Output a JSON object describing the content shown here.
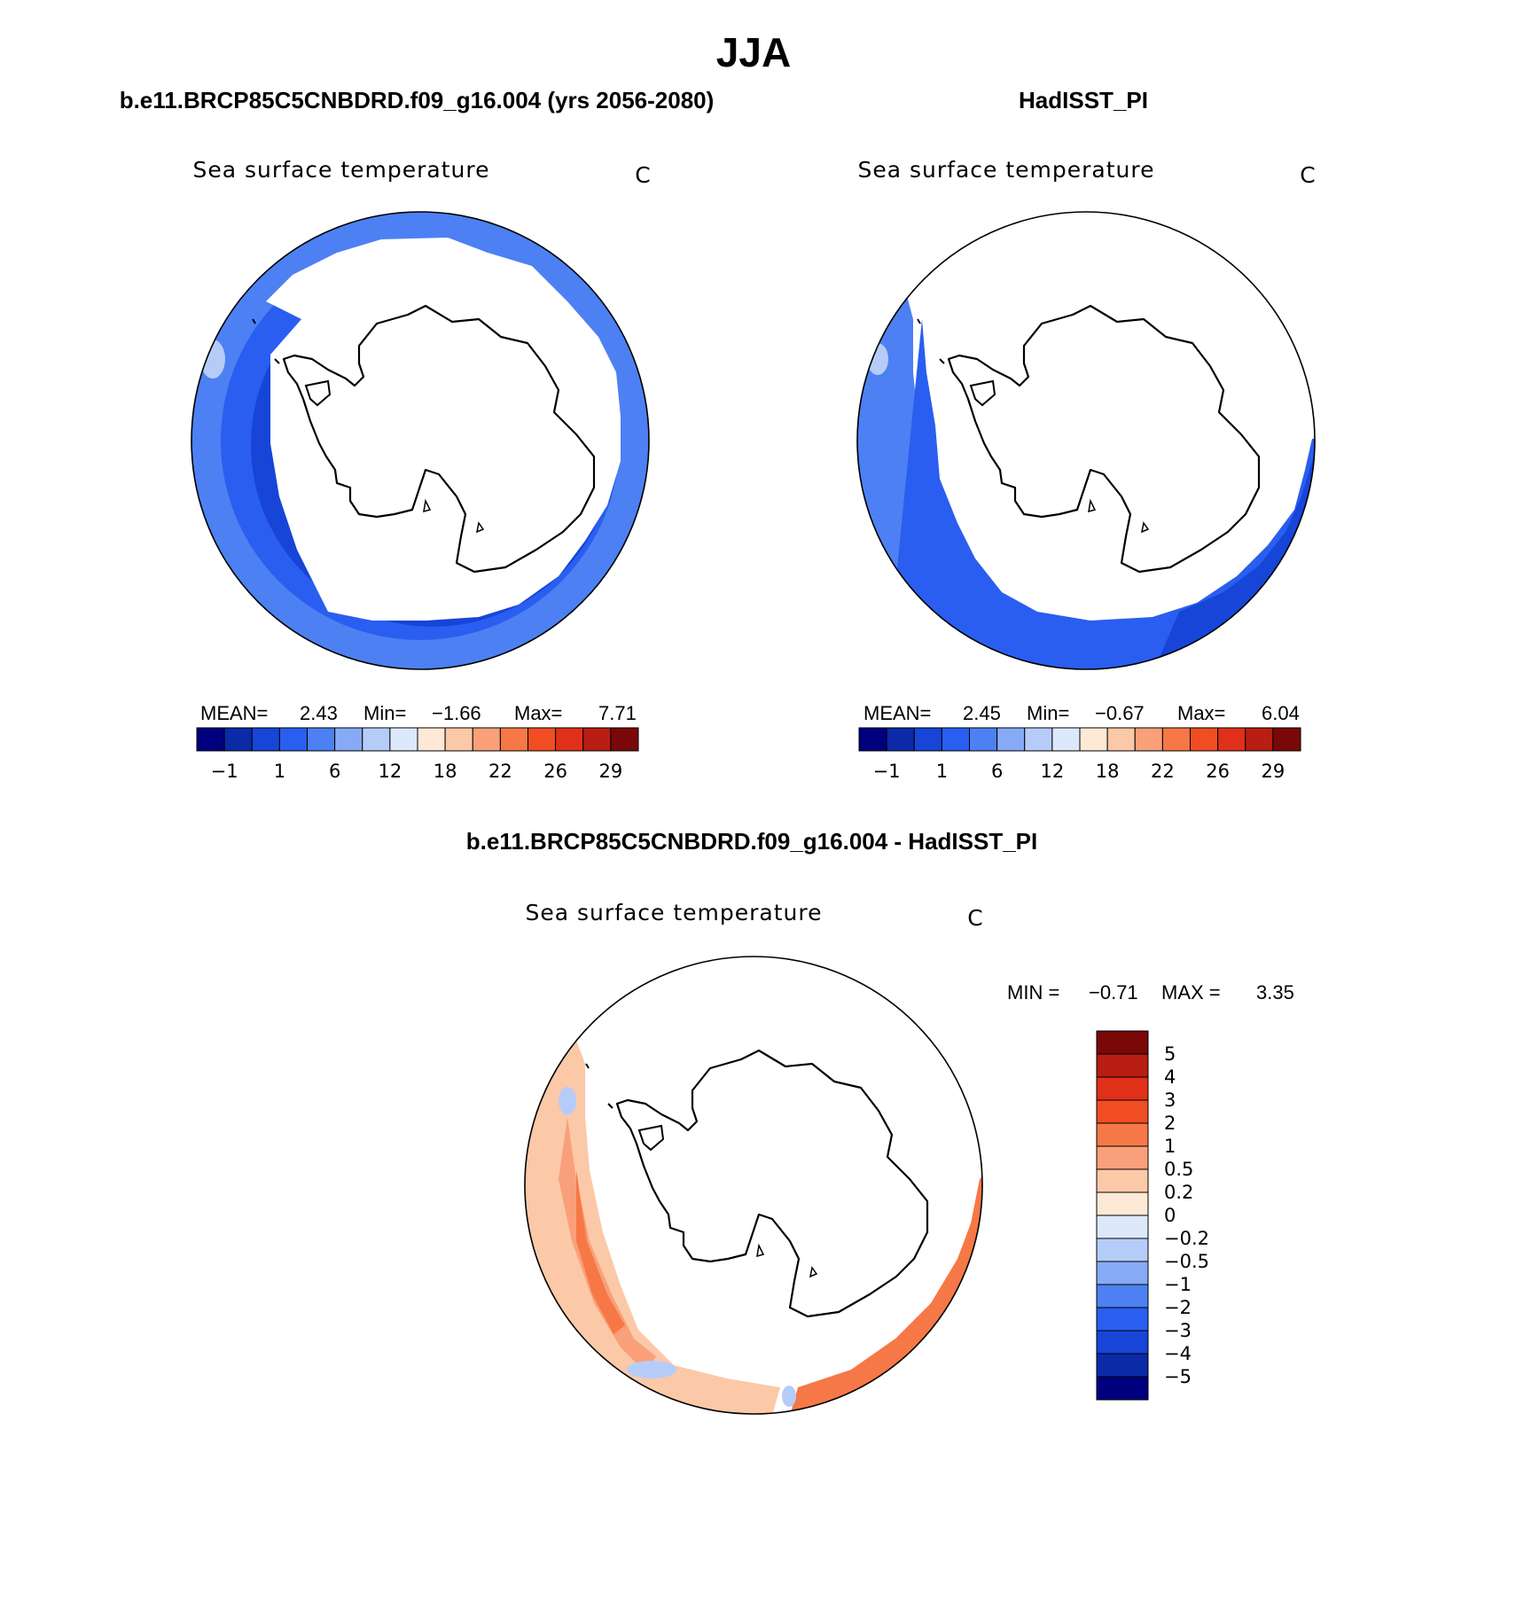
{
  "title": "JJA",
  "panels": [
    {
      "id": "model",
      "heading": "b.e11.BRCP85C5CNBDRD.f09_g16.004 (yrs 2056-2080)",
      "variable": "Sea surface temperature",
      "units": "C",
      "stats": {
        "mean_label": "MEAN=",
        "mean": "2.43",
        "min_label": "Min=",
        "min": "−1.66",
        "max_label": "Max=",
        "max": "7.71"
      },
      "colorbar_ticks": [
        "−1",
        "1",
        "6",
        "12",
        "18",
        "22",
        "26",
        "29"
      ],
      "colorbar_colors": [
        "#00007e",
        "#0a2aa8",
        "#1645d8",
        "#2a5ef0",
        "#4d80f2",
        "#86aaf5",
        "#b6ccf8",
        "#dde9fb",
        "#fde9d6",
        "#fbc9a7",
        "#f9a07a",
        "#f67846",
        "#f04e22",
        "#e0301a",
        "#b81e12",
        "#7a0808"
      ]
    },
    {
      "id": "obs",
      "heading": "HadISST_PI",
      "variable": "Sea surface temperature",
      "units": "C",
      "stats": {
        "mean_label": "MEAN=",
        "mean": "2.45",
        "min_label": "Min=",
        "min": "−0.67",
        "max_label": "Max=",
        "max": "6.04"
      },
      "colorbar_ticks": [
        "−1",
        "1",
        "6",
        "12",
        "18",
        "22",
        "26",
        "29"
      ],
      "colorbar_colors": [
        "#00007e",
        "#0a2aa8",
        "#1645d8",
        "#2a5ef0",
        "#4d80f2",
        "#86aaf5",
        "#b6ccf8",
        "#dde9fb",
        "#fde9d6",
        "#fbc9a7",
        "#f9a07a",
        "#f67846",
        "#f04e22",
        "#e0301a",
        "#b81e12",
        "#7a0808"
      ]
    }
  ],
  "diff": {
    "heading": "b.e11.BRCP85C5CNBDRD.f09_g16.004 - HadISST_PI",
    "variable": "Sea surface temperature",
    "units": "C",
    "stats": {
      "min_label": "MIN =",
      "min": "−0.71",
      "max_label": "MAX =",
      "max": "3.35"
    },
    "colorbar_labels": [
      "5",
      "4",
      "3",
      "2",
      "1",
      "0.5",
      "0.2",
      "0",
      "−0.2",
      "−0.5",
      "−1",
      "−2",
      "−3",
      "−4",
      "−5"
    ],
    "colorbar_colors": [
      "#7a0808",
      "#b81e12",
      "#e0301a",
      "#f04e22",
      "#f67846",
      "#f9a07a",
      "#fbc9a7",
      "#fde9d6",
      "#dde9fb",
      "#b6ccf8",
      "#86aaf5",
      "#4d80f2",
      "#2a5ef0",
      "#1645d8",
      "#0a2aa8",
      "#00007e"
    ]
  },
  "colors": {
    "sst_light": "#4d80f2",
    "sst_mid": "#2a5ef0",
    "sst_dark": "#1645d8",
    "sst_pale": "#b6ccf8",
    "diff_pale": "#fbc9a7",
    "diff_mid": "#f9a07a",
    "diff_strong": "#f67846",
    "diff_neg": "#b6ccf8"
  }
}
